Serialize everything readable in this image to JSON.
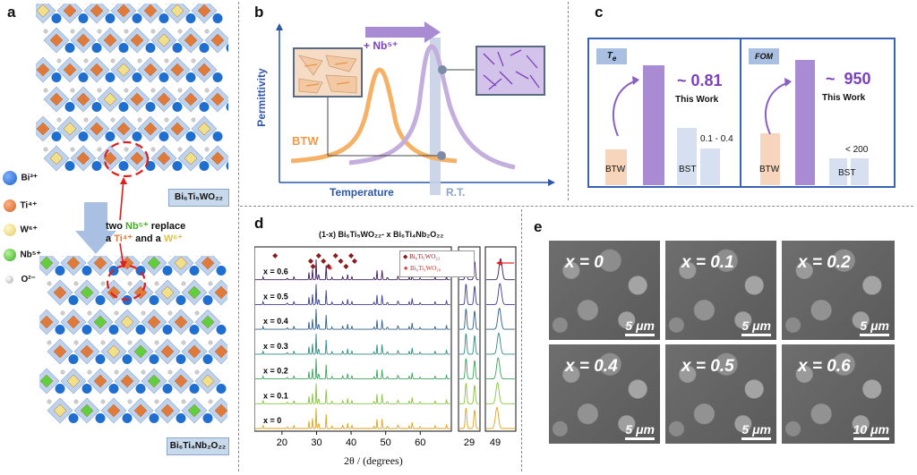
{
  "panels": {
    "a": {
      "label": "a",
      "top_formula": "Bi₆Ti₅WO₂₂",
      "bottom_formula": "Bi₆Ti₄Nb₂O₂₂",
      "legend": [
        {
          "ion": "Bi³⁺",
          "color": "#1f6fd1"
        },
        {
          "ion": "Ti⁴⁺",
          "color": "#e07a3a"
        },
        {
          "ion": "W⁶⁺",
          "color": "#f1e08a"
        },
        {
          "ion": "Nb⁵⁺",
          "color": "#5fcf3d"
        },
        {
          "ion": "O²⁻",
          "color": "#c8c8c8"
        }
      ],
      "replace_text": {
        "l1a": "two ",
        "l1b": "Nb⁵⁺",
        "l1c": " replace",
        "l2a": "a ",
        "l2b": "Ti⁴⁺",
        "l2c": " and a ",
        "l2d": "W⁶⁺"
      }
    },
    "b": {
      "label": "b",
      "dopant": "+ Nb⁵⁺",
      "ylabel": "Permittivity",
      "xlabel": "Temperature",
      "btw": "BTW",
      "rt": "R.T."
    },
    "c": {
      "label": "c",
      "left": {
        "tag": "T",
        "tag_sub": "e",
        "value": "~ 0.81",
        "work": "This Work",
        "range": "0.1 - 0.4",
        "btw": "BTW",
        "bst": "BST"
      },
      "right": {
        "tag": "FOM",
        "value": "~  950",
        "work": "This Work",
        "range": "< 200",
        "btw": "BTW",
        "bst": "BST"
      }
    },
    "d": {
      "label": "d",
      "xlabel": "2θ / (degrees)",
      "legend": [
        "Bi₆Ti₃WO₁₈",
        "Bi₆Ti₃WO₁₈"
      ],
      "legend_main": "Bi₆Ti₅WO₂₂"
    },
    "e": {
      "label": "e",
      "images": [
        {
          "x": "x = 0",
          "scale": "5 μm"
        },
        {
          "x": "x = 0.1",
          "scale": "5 μm"
        },
        {
          "x": "x = 0.2",
          "scale": "5 μm"
        },
        {
          "x": "x = 0.4",
          "scale": "5 μm"
        },
        {
          "x": "x = 0.5",
          "scale": "5 μm"
        },
        {
          "x": "x = 0.6",
          "scale": "10 μm"
        }
      ]
    }
  },
  "chart_data": {
    "type": "line",
    "title": "(1-x) Bi₆Ti₅WO₂₂- x Bi₆Ti₄Nb₂O₂₂",
    "xlabel": "2θ / (degrees)",
    "ylabel": "",
    "main_xlim": [
      12,
      69
    ],
    "main_ticks": [
      20,
      30,
      40,
      50,
      60
    ],
    "zoom1_tick": 29,
    "zoom2_tick": 49,
    "series": [
      {
        "name": "x = 0.6",
        "color": "#3d1a5e"
      },
      {
        "name": "x = 0.5",
        "color": "#3b3f8c"
      },
      {
        "name": "x = 0.4",
        "color": "#2f5f8a"
      },
      {
        "name": "x = 0.3",
        "color": "#2e8a83"
      },
      {
        "name": "x = 0.2",
        "color": "#3aa45c"
      },
      {
        "name": "x = 0.1",
        "color": "#86c33c"
      },
      {
        "name": "x = 0",
        "color": "#e0a21b"
      }
    ],
    "peaks": [
      [
        14.5,
        0.15
      ],
      [
        21.5,
        0.12
      ],
      [
        23.5,
        0.18
      ],
      [
        27.8,
        0.35
      ],
      [
        28.8,
        0.55
      ],
      [
        29.9,
        1.0
      ],
      [
        30.6,
        0.45
      ],
      [
        32.8,
        0.7
      ],
      [
        34.5,
        0.15
      ],
      [
        37.6,
        0.2
      ],
      [
        39.0,
        0.25
      ],
      [
        40.2,
        0.18
      ],
      [
        46.6,
        0.15
      ],
      [
        47.5,
        0.45
      ],
      [
        49.0,
        0.55
      ],
      [
        50.5,
        0.2
      ],
      [
        53.6,
        0.3
      ],
      [
        56.8,
        0.15
      ],
      [
        57.7,
        0.35
      ],
      [
        60.0,
        0.12
      ],
      [
        64.3,
        0.15
      ],
      [
        67.6,
        0.2
      ]
    ]
  }
}
